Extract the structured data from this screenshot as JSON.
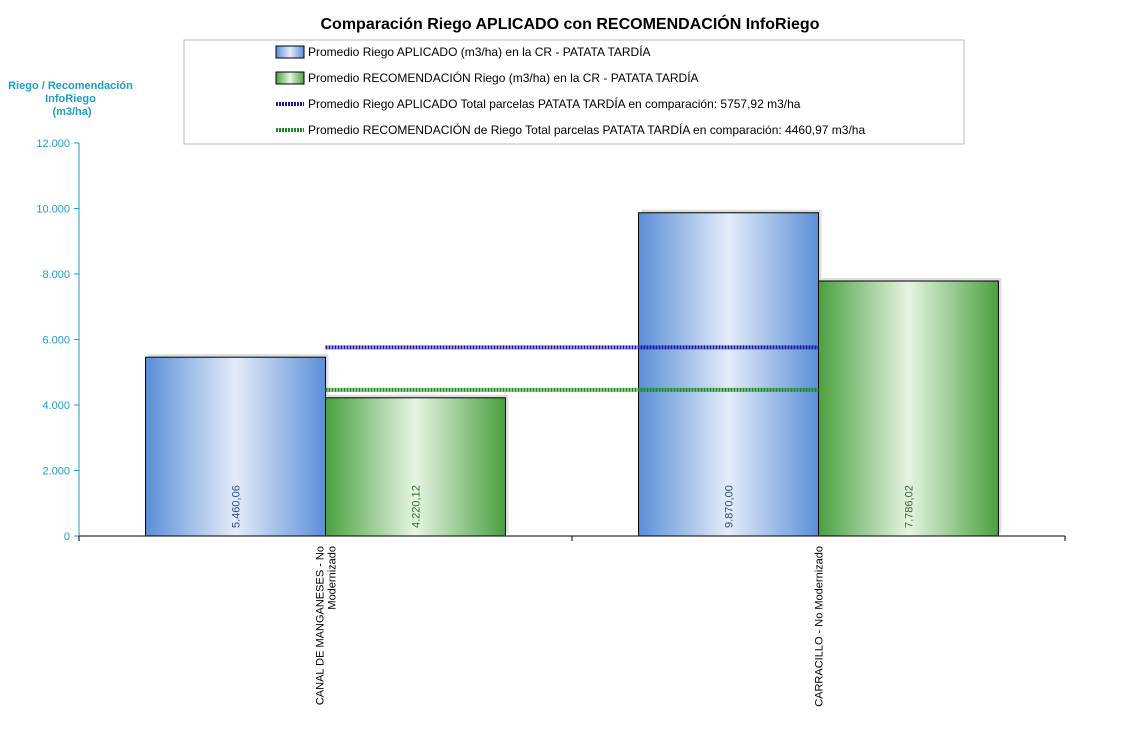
{
  "chart_data": {
    "type": "bar",
    "title": "Comparación Riego APLICADO  con RECOMENDACIÓN InfoRiego",
    "ylabel": [
      "Riego / Recomendación",
      "InfoRiego",
      "(m3/ha)"
    ],
    "ylim": [
      0,
      12000
    ],
    "yticks": [
      0,
      2000,
      4000,
      6000,
      8000,
      10000,
      12000
    ],
    "ytick_labels": [
      "0",
      "2.000",
      "4.000",
      "6.000",
      "8.000",
      "10.000",
      "12.000"
    ],
    "categories": [
      [
        "CANAL DE MANGANESES - No",
        "Modernizado"
      ],
      [
        "CARRACILLO - No Modernizado"
      ]
    ],
    "series": [
      {
        "name": "Promedio Riego APLICADO (m3/ha) en la CR - PATATA TARDÍA",
        "values": [
          5460.06,
          9870.0
        ],
        "labels": [
          "5.460,06",
          "9.870,00"
        ],
        "color": "#5b8fd8",
        "label_color": "#2b4d8c"
      },
      {
        "name": "Promedio RECOMENDACIÓN Riego (m3/ha) en la CR - PATATA TARDÍA",
        "values": [
          4220.12,
          7786.02
        ],
        "labels": [
          "4.220,12",
          "7.786,02"
        ],
        "color": "#4aa040",
        "label_color": "#2f6b2a"
      }
    ],
    "reference_lines": [
      {
        "name": "Promedio Riego APLICADO Total parcelas PATATA TARDÍA en comparación: 5757,92 m3/ha",
        "value": 5757.92,
        "color": "#1a1aa8"
      },
      {
        "name": "Promedio RECOMENDACIÓN de Riego Total parcelas PATATA TARDÍA en comparación: 4460,97 m3/ha",
        "value": 4460.97,
        "color": "#1a8a1a"
      }
    ],
    "legend_position": "top",
    "grid": false
  }
}
